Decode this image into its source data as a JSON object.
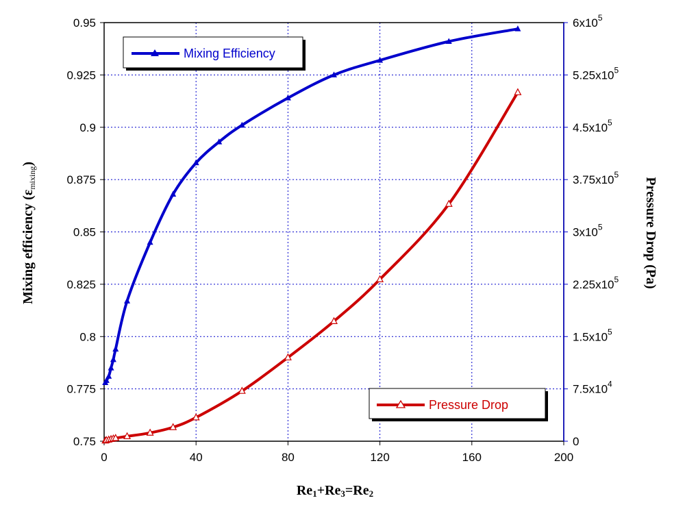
{
  "chart_data": {
    "type": "line",
    "xlabel": "Re1+Re3=Re2",
    "xlabel_parts": {
      "a": "Re",
      "a_sub": "1",
      "plus1": "+Re",
      "b_sub": "3",
      "eq": "=Re",
      "c_sub": "2"
    },
    "ylabel_left": "Mixing efficiency  (ε_mixing)",
    "ylabel_left_parts": {
      "main": "Mixing efficiency  (",
      "symbol": "ε",
      "sub": "mixing",
      "close": ")"
    },
    "ylabel_right": "Pressure Drop  (Pa)",
    "xlim": [
      0,
      200
    ],
    "ylim_left": [
      0.75,
      0.95
    ],
    "ylim_right": [
      0,
      600000
    ],
    "grid": true,
    "x_ticks": [
      {
        "value": 0,
        "label": "0"
      },
      {
        "value": 40,
        "label": "40"
      },
      {
        "value": 80,
        "label": "80"
      },
      {
        "value": 120,
        "label": "120"
      },
      {
        "value": 160,
        "label": "160"
      },
      {
        "value": 200,
        "label": "200"
      }
    ],
    "y_left_ticks": [
      {
        "value": 0.75,
        "label": "0.75"
      },
      {
        "value": 0.775,
        "label": "0.775"
      },
      {
        "value": 0.8,
        "label": "0.8"
      },
      {
        "value": 0.825,
        "label": "0.825"
      },
      {
        "value": 0.85,
        "label": "0.85"
      },
      {
        "value": 0.875,
        "label": "0.875"
      },
      {
        "value": 0.9,
        "label": "0.9"
      },
      {
        "value": 0.925,
        "label": "0.925"
      },
      {
        "value": 0.95,
        "label": "0.95"
      }
    ],
    "y_right_ticks": [
      {
        "value": 0,
        "base": "0",
        "exp": ""
      },
      {
        "value": 75000,
        "base": "7.5x10",
        "exp": "4"
      },
      {
        "value": 150000,
        "base": "1.5x10",
        "exp": "5"
      },
      {
        "value": 225000,
        "base": "2.25x10",
        "exp": "5"
      },
      {
        "value": 300000,
        "base": "3x10",
        "exp": "5"
      },
      {
        "value": 375000,
        "base": "3.75x10",
        "exp": "5"
      },
      {
        "value": 450000,
        "base": "4.5x10",
        "exp": "5"
      },
      {
        "value": 525000,
        "base": "5.25x10",
        "exp": "5"
      },
      {
        "value": 600000,
        "base": "6x10",
        "exp": "5"
      }
    ],
    "series": [
      {
        "name": "Mixing Efficiency",
        "axis": "left",
        "color": "#0000cc",
        "marker": "filled-triangle",
        "legend_position": "top-left",
        "x": [
          0.5,
          1,
          2,
          3,
          4,
          5,
          10,
          20,
          30,
          40,
          50,
          60,
          80,
          100,
          120,
          150,
          180
        ],
        "y": [
          0.778,
          0.779,
          0.781,
          0.785,
          0.789,
          0.794,
          0.817,
          0.845,
          0.868,
          0.883,
          0.893,
          0.901,
          0.914,
          0.925,
          0.932,
          0.941,
          0.947
        ]
      },
      {
        "name": "Pressure Drop",
        "axis": "right",
        "color": "#cc0000",
        "marker": "open-triangle",
        "legend_position": "bottom-right",
        "x": [
          0.5,
          1,
          2,
          3,
          4,
          5,
          10,
          20,
          30,
          40,
          60,
          80,
          100,
          120,
          150,
          180
        ],
        "y": [
          800,
          1500,
          2200,
          3000,
          3800,
          4500,
          7000,
          12000,
          20000,
          34000,
          72000,
          120000,
          172000,
          232000,
          340000,
          500000
        ]
      }
    ]
  }
}
